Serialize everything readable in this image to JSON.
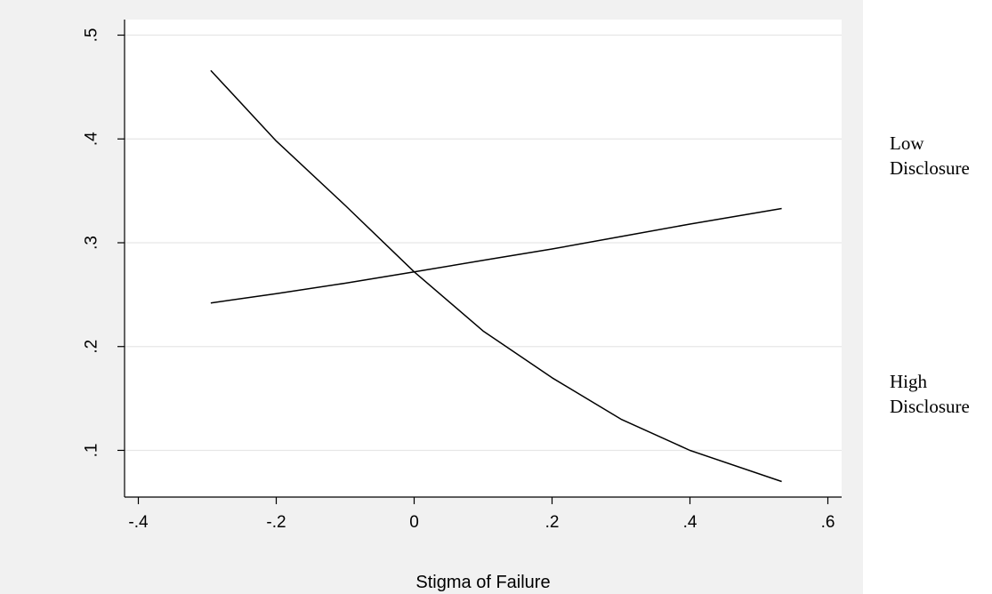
{
  "chart_data": {
    "type": "line",
    "title": "",
    "xlabel": "Stigma of Failure",
    "ylabel": "",
    "xlim": [
      -0.42,
      0.62
    ],
    "ylim": [
      0.055,
      0.515
    ],
    "x_ticks": [
      {
        "value": -0.4,
        "label": "-.4"
      },
      {
        "value": -0.2,
        "label": "-.2"
      },
      {
        "value": 0,
        "label": "0"
      },
      {
        "value": 0.2,
        "label": ".2"
      },
      {
        "value": 0.4,
        "label": ".4"
      },
      {
        "value": 0.6,
        "label": ".6"
      }
    ],
    "y_ticks": [
      {
        "value": 0.1,
        "label": ".1"
      },
      {
        "value": 0.2,
        "label": ".2"
      },
      {
        "value": 0.3,
        "label": ".3"
      },
      {
        "value": 0.4,
        "label": ".4"
      },
      {
        "value": 0.5,
        "label": ".5"
      }
    ],
    "grid": true,
    "series": [
      {
        "name": "Low Disclosure",
        "x": [
          -0.295,
          -0.2,
          -0.1,
          0.0,
          0.1,
          0.2,
          0.3,
          0.4,
          0.533
        ],
        "y": [
          0.242,
          0.251,
          0.261,
          0.272,
          0.283,
          0.294,
          0.306,
          0.318,
          0.333
        ]
      },
      {
        "name": "High Disclosure",
        "x": [
          -0.295,
          -0.2,
          -0.1,
          0.0,
          0.1,
          0.2,
          0.3,
          0.4,
          0.533
        ],
        "y": [
          0.466,
          0.398,
          0.336,
          0.272,
          0.215,
          0.17,
          0.13,
          0.1,
          0.07
        ]
      }
    ]
  }
}
